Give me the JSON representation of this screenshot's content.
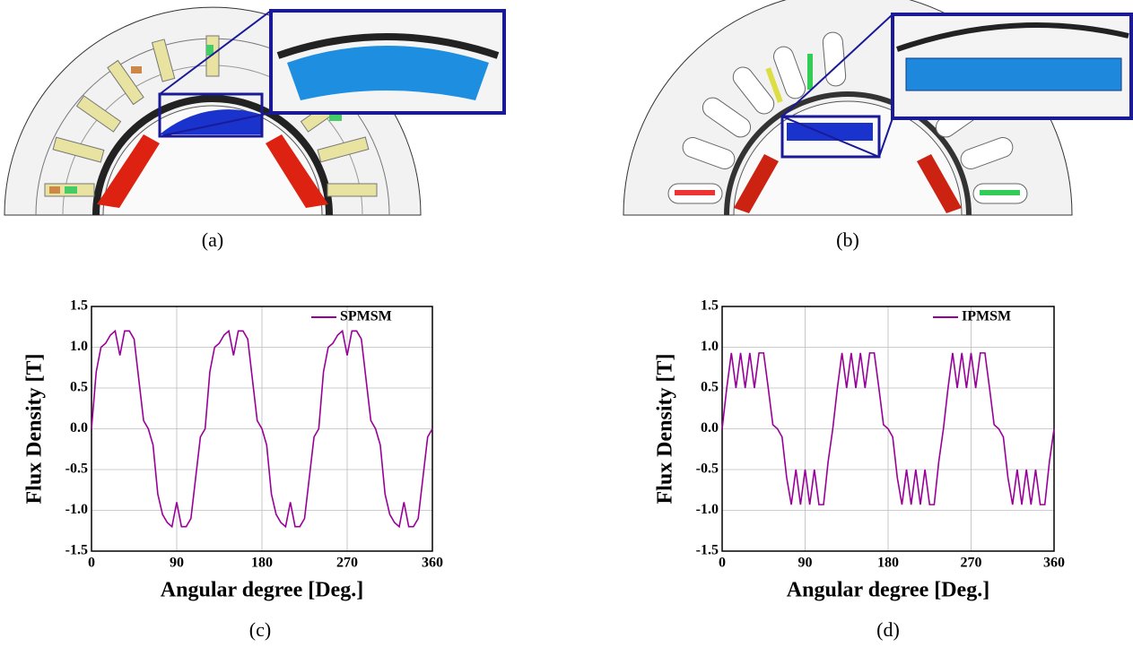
{
  "captions": [
    "(a)",
    "(b)",
    "(c)",
    "(d)"
  ],
  "chart_data": [
    {
      "type": "line",
      "xlabel": "Angular degree [Deg.]",
      "ylabel": "Flux Density [T]",
      "x": [
        0,
        5,
        10,
        15,
        20,
        25,
        30,
        35,
        40,
        45,
        50,
        55,
        60,
        65,
        70,
        75,
        80,
        85,
        90,
        95,
        100,
        105,
        110,
        115,
        120,
        125,
        130,
        135,
        140,
        145,
        150,
        155,
        160,
        165,
        170,
        175,
        180,
        185,
        190,
        195,
        200,
        205,
        210,
        215,
        220,
        225,
        230,
        235,
        240,
        245,
        250,
        255,
        260,
        265,
        270,
        275,
        280,
        285,
        290,
        295,
        300,
        305,
        310,
        315,
        320,
        325,
        330,
        335,
        340,
        345,
        350,
        355,
        360
      ],
      "series": [
        {
          "name": "SPMSM",
          "color": "#990099",
          "values": [
            0,
            0.7,
            1.0,
            1.05,
            1.15,
            1.2,
            0.9,
            1.2,
            1.2,
            1.1,
            0.6,
            0.1,
            0,
            -0.2,
            -0.8,
            -1.05,
            -1.15,
            -1.2,
            -0.9,
            -1.2,
            -1.2,
            -1.1,
            -0.6,
            -0.1,
            0,
            0.7,
            1.0,
            1.05,
            1.15,
            1.2,
            0.9,
            1.2,
            1.2,
            1.1,
            0.6,
            0.1,
            0,
            -0.2,
            -0.8,
            -1.05,
            -1.15,
            -1.2,
            -0.9,
            -1.2,
            -1.2,
            -1.1,
            -0.6,
            -0.1,
            0,
            0.7,
            1.0,
            1.05,
            1.15,
            1.2,
            0.9,
            1.2,
            1.2,
            1.1,
            0.6,
            0.1,
            0,
            -0.2,
            -0.8,
            -1.05,
            -1.15,
            -1.2,
            -0.9,
            -1.2,
            -1.2,
            -1.1,
            -0.6,
            -0.1,
            0
          ]
        }
      ],
      "xlim": [
        0,
        360
      ],
      "xticks": [
        0,
        90,
        180,
        270,
        360
      ],
      "ylim": [
        -1.5,
        1.5
      ],
      "yticks": [
        {
          "value": -1.5,
          "label": "-1.5"
        },
        {
          "value": -1,
          "label": "-1.0"
        },
        -0.5,
        {
          "value": 0,
          "label": "0.0"
        },
        0.5,
        {
          "value": 1,
          "label": "1.0"
        },
        1.5
      ],
      "grid": true,
      "legend": "upper-right"
    },
    {
      "type": "line",
      "xlabel": "Angular degree [Deg.]",
      "ylabel": "Flux Density [T]",
      "x": [
        0,
        5,
        10,
        15,
        20,
        25,
        30,
        35,
        40,
        45,
        50,
        55,
        60,
        65,
        70,
        75,
        80,
        85,
        90,
        95,
        100,
        105,
        110,
        115,
        120,
        125,
        130,
        135,
        140,
        145,
        150,
        155,
        160,
        165,
        170,
        175,
        180,
        185,
        190,
        195,
        200,
        205,
        210,
        215,
        220,
        225,
        230,
        235,
        240,
        245,
        250,
        255,
        260,
        265,
        270,
        275,
        280,
        285,
        290,
        295,
        300,
        305,
        310,
        315,
        320,
        325,
        330,
        335,
        340,
        345,
        350,
        355,
        360
      ],
      "series": [
        {
          "name": "IPMSM",
          "color": "#990099",
          "values": [
            0,
            0.5,
            0.93,
            0.5,
            0.93,
            0.5,
            0.93,
            0.5,
            0.93,
            0.93,
            0.5,
            0.05,
            0,
            -0.1,
            -0.6,
            -0.93,
            -0.5,
            -0.93,
            -0.5,
            -0.93,
            -0.5,
            -0.93,
            -0.93,
            -0.4,
            0,
            0.5,
            0.93,
            0.5,
            0.93,
            0.5,
            0.93,
            0.5,
            0.93,
            0.93,
            0.5,
            0.05,
            0,
            -0.1,
            -0.6,
            -0.93,
            -0.5,
            -0.93,
            -0.5,
            -0.93,
            -0.5,
            -0.93,
            -0.93,
            -0.4,
            0,
            0.5,
            0.93,
            0.5,
            0.93,
            0.5,
            0.93,
            0.5,
            0.93,
            0.93,
            0.5,
            0.05,
            0,
            -0.1,
            -0.6,
            -0.93,
            -0.5,
            -0.93,
            -0.5,
            -0.93,
            -0.5,
            -0.93,
            -0.93,
            -0.4,
            0
          ]
        }
      ],
      "xlim": [
        0,
        360
      ],
      "xticks": [
        0,
        90,
        180,
        270,
        360
      ],
      "ylim": [
        -1.5,
        1.5
      ],
      "yticks": [
        {
          "value": -1.5,
          "label": "-1.5"
        },
        {
          "value": -1,
          "label": "-1.0"
        },
        -0.5,
        {
          "value": 0,
          "label": "0.0"
        },
        0.5,
        {
          "value": 1,
          "label": "1.0"
        },
        1.5
      ],
      "grid": true,
      "legend": "upper-right"
    }
  ]
}
